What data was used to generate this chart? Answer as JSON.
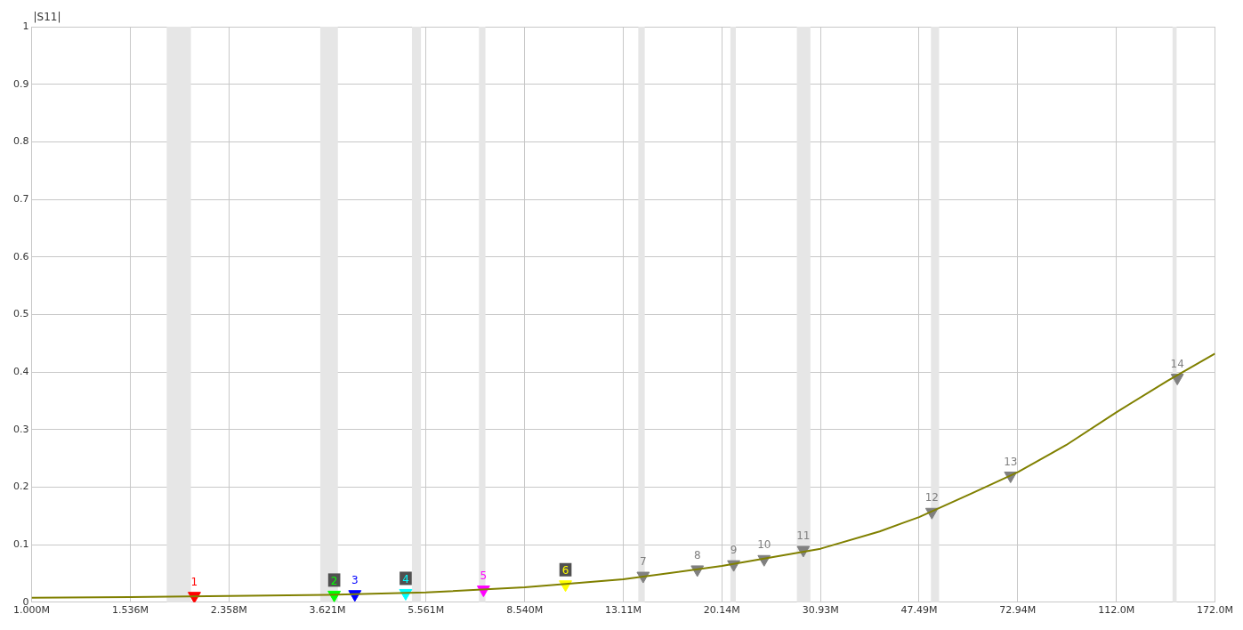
{
  "chart_data": {
    "type": "line",
    "ylabel": "|S11|",
    "log": "x",
    "grid": true,
    "legend": false,
    "xlim": [
      1,
      172
    ],
    "xticks": [
      {
        "value": 1,
        "label": "1.000M"
      },
      {
        "value": 1.536,
        "label": "1.536M"
      },
      {
        "value": 2.358,
        "label": "2.358M"
      },
      {
        "value": 3.621,
        "label": "3.621M"
      },
      {
        "value": 5.561,
        "label": "5.561M"
      },
      {
        "value": 8.54,
        "label": "8.540M"
      },
      {
        "value": 13.11,
        "label": "13.11M"
      },
      {
        "value": 20.14,
        "label": "20.14M"
      },
      {
        "value": 30.93,
        "label": "30.93M"
      },
      {
        "value": 47.49,
        "label": "47.49M"
      },
      {
        "value": 72.94,
        "label": "72.94M"
      },
      {
        "value": 112,
        "label": "112.0M"
      },
      {
        "value": 172,
        "label": "172.0M"
      }
    ],
    "ylim": [
      0,
      1
    ],
    "yticks": [
      0,
      0.1,
      0.2,
      0.3,
      0.4,
      0.5,
      0.6,
      0.7,
      0.8,
      0.9,
      1
    ],
    "bands": [
      {
        "axis": "x",
        "from": 1.8,
        "to": 2.0,
        "color": "#e6e6e6"
      },
      {
        "axis": "x",
        "from": 3.51,
        "to": 3.79,
        "color": "#e6e6e6"
      },
      {
        "axis": "x",
        "from": 5.23,
        "to": 5.44,
        "color": "#e6e6e6"
      },
      {
        "axis": "x",
        "from": 7.0,
        "to": 7.2,
        "color": "#e6e6e6"
      },
      {
        "axis": "x",
        "from": 14.0,
        "to": 14.4,
        "color": "#e6e6e6"
      },
      {
        "axis": "x",
        "from": 20.9,
        "to": 21.4,
        "color": "#e6e6e6"
      },
      {
        "axis": "x",
        "from": 27.9,
        "to": 29.6,
        "color": "#e6e6e6"
      },
      {
        "axis": "x",
        "from": 50.0,
        "to": 51.8,
        "color": "#e6e6e6"
      },
      {
        "axis": "x",
        "from": 143,
        "to": 145.6,
        "color": "#e6e6e6"
      }
    ],
    "series": [
      {
        "type": "line",
        "color": "#808000",
        "marker": "none",
        "x": [
          1,
          1.536,
          2.358,
          3.621,
          5.561,
          8.54,
          13.11,
          20.14,
          30.93,
          40,
          47.49,
          60,
          72.94,
          90,
          112,
          140,
          172
        ],
        "values": [
          0.008,
          0.009,
          0.011,
          0.013,
          0.017,
          0.026,
          0.04,
          0.063,
          0.093,
          0.123,
          0.148,
          0.19,
          0.226,
          0.273,
          0.33,
          0.385,
          0.432
        ]
      },
      {
        "type": "scatter",
        "marker": "triangle",
        "name": "1",
        "color": "#ff0000",
        "x": [
          2.03
        ],
        "values": [
          0.011
        ]
      },
      {
        "type": "scatter",
        "marker": "triangle",
        "name": "2",
        "color": "#00ff00",
        "x": [
          3.73
        ],
        "values": [
          0.013
        ]
      },
      {
        "type": "scatter",
        "marker": "triangle",
        "name": "3",
        "color": "#0000ff",
        "x": [
          4.08
        ],
        "values": [
          0.014
        ]
      },
      {
        "type": "scatter",
        "marker": "triangle",
        "name": "4",
        "color": "#00ffff",
        "x": [
          5.09
        ],
        "values": [
          0.016
        ]
      },
      {
        "type": "scatter",
        "marker": "triangle",
        "name": "5",
        "color": "#ff00ff",
        "x": [
          7.14
        ],
        "values": [
          0.022
        ]
      },
      {
        "type": "scatter",
        "marker": "triangle",
        "name": "6",
        "color": "#ffff00",
        "x": [
          10.2
        ],
        "values": [
          0.031
        ]
      },
      {
        "type": "scatter",
        "marker": "triangle",
        "name": "7",
        "color": "#808080",
        "x": [
          14.3
        ],
        "values": [
          0.046
        ]
      },
      {
        "type": "scatter",
        "marker": "triangle",
        "name": "8",
        "color": "#808080",
        "x": [
          18.1
        ],
        "values": [
          0.057
        ]
      },
      {
        "type": "scatter",
        "marker": "triangle",
        "name": "9",
        "color": "#808080",
        "x": [
          21.2
        ],
        "values": [
          0.066
        ]
      },
      {
        "type": "scatter",
        "marker": "triangle",
        "name": "10",
        "color": "#808080",
        "x": [
          24.2
        ],
        "values": [
          0.075
        ]
      },
      {
        "type": "scatter",
        "marker": "triangle",
        "name": "11",
        "color": "#808080",
        "x": [
          28.7
        ],
        "values": [
          0.091
        ]
      },
      {
        "type": "scatter",
        "marker": "triangle",
        "name": "12",
        "color": "#808080",
        "x": [
          50.2
        ],
        "values": [
          0.157
        ]
      },
      {
        "type": "scatter",
        "marker": "triangle",
        "name": "13",
        "color": "#808080",
        "x": [
          70.7
        ],
        "values": [
          0.22
        ]
      },
      {
        "type": "scatter",
        "marker": "triangle",
        "name": "14",
        "color": "#808080",
        "x": [
          146
        ],
        "values": [
          0.39
        ]
      }
    ]
  }
}
